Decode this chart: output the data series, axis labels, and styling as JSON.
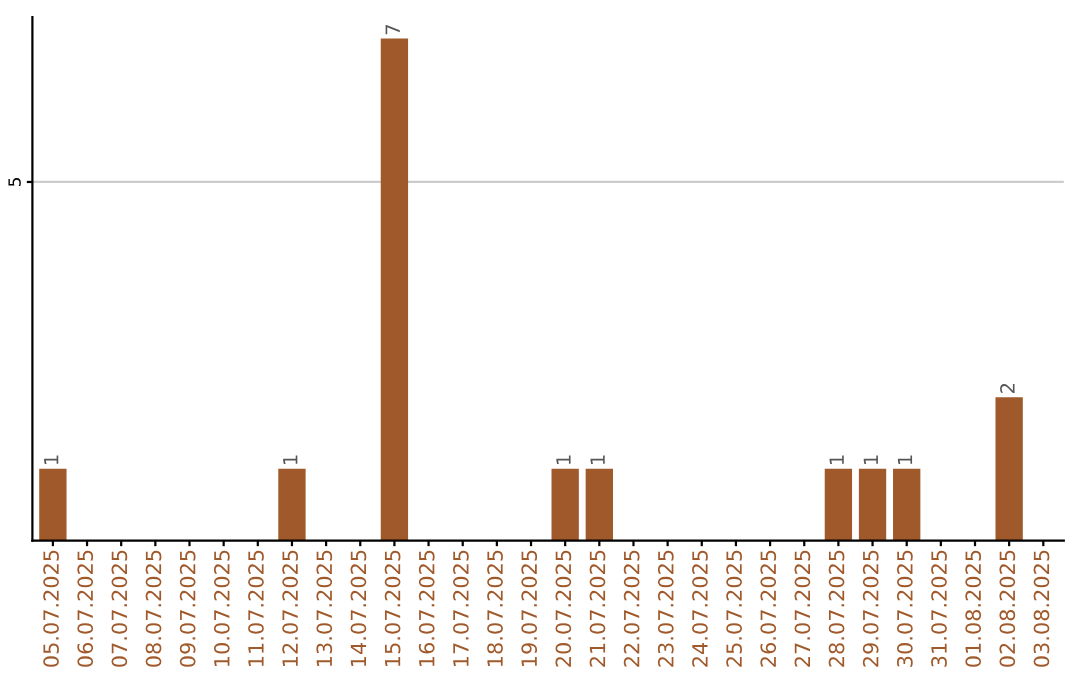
{
  "chart_data": {
    "type": "bar",
    "categories": [
      "05.07.2025",
      "06.07.2025",
      "07.07.2025",
      "08.07.2025",
      "09.07.2025",
      "10.07.2025",
      "11.07.2025",
      "12.07.2025",
      "13.07.2025",
      "14.07.2025",
      "15.07.2025",
      "16.07.2025",
      "17.07.2025",
      "18.07.2025",
      "19.07.2025",
      "20.07.2025",
      "21.07.2025",
      "22.07.2025",
      "23.07.2025",
      "24.07.2025",
      "25.07.2025",
      "26.07.2025",
      "27.07.2025",
      "28.07.2025",
      "29.07.2025",
      "30.07.2025",
      "31.07.2025",
      "01.08.2025",
      "02.08.2025",
      "03.08.2025"
    ],
    "values": [
      1,
      0,
      0,
      0,
      0,
      0,
      0,
      1,
      0,
      0,
      7,
      0,
      0,
      0,
      0,
      1,
      1,
      0,
      0,
      0,
      0,
      0,
      0,
      1,
      1,
      1,
      0,
      0,
      2,
      0
    ],
    "value_labels": [
      "1",
      null,
      null,
      null,
      null,
      null,
      null,
      "1",
      null,
      null,
      "7",
      null,
      null,
      null,
      null,
      "1",
      "1",
      null,
      null,
      null,
      null,
      null,
      null,
      "1",
      "1",
      "1",
      null,
      null,
      "2",
      null
    ],
    "color": "#a0592a",
    "ylim": [
      0,
      7.3
    ],
    "yticks": [
      5
    ],
    "grid": "y",
    "legend": false
  }
}
